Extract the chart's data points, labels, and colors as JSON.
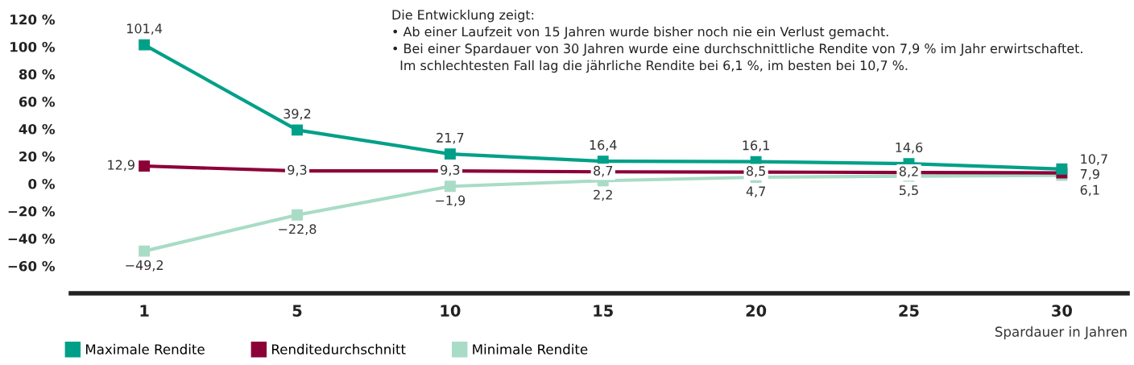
{
  "chart_data": {
    "type": "line",
    "categories": [
      "1",
      "5",
      "10",
      "15",
      "20",
      "25",
      "30"
    ],
    "xlabel": "Spardauer in Jahren",
    "ylim": [
      -80,
      120
    ],
    "yticks": [
      {
        "value": -60,
        "label": "−60 %"
      },
      {
        "value": -40,
        "label": "−40 %"
      },
      {
        "value": -20,
        "label": "−20 %"
      },
      {
        "value": 0,
        "label": "0 %"
      },
      {
        "value": 20,
        "label": "20 %"
      },
      {
        "value": 40,
        "label": "40 %"
      },
      {
        "value": 60,
        "label": "60 %"
      },
      {
        "value": 80,
        "label": "80 %"
      },
      {
        "value": 100,
        "label": "100 %"
      },
      {
        "value": 120,
        "label": "120 %"
      }
    ],
    "series": [
      {
        "name": "Maximale Rendite",
        "color": "#00a088",
        "values": [
          101.4,
          39.2,
          21.7,
          16.4,
          16.1,
          14.6,
          10.7
        ],
        "value_labels": [
          "101,4",
          "39,2",
          "21,7",
          "16,4",
          "16,1",
          "14,6",
          "10,7"
        ]
      },
      {
        "name": "Renditedurchschnitt",
        "color": "#8c0038",
        "values": [
          12.9,
          9.3,
          9.3,
          8.7,
          8.5,
          8.2,
          7.9
        ],
        "value_labels": [
          "12,9",
          "9,3",
          "9,3",
          "8,7",
          "8,5",
          "8,2",
          "7,9"
        ]
      },
      {
        "name": "Minimale Rendite",
        "color": "#a8dcc6",
        "values": [
          -49.2,
          -22.8,
          -1.9,
          2.2,
          4.7,
          5.5,
          6.1
        ],
        "value_labels": [
          "−49,2",
          "−22,8",
          "−1,9",
          "2,2",
          "4,7",
          "5,5",
          "6,1"
        ]
      }
    ],
    "annotations": [
      "Die Entwicklung zeigt:\n• Ab einer Laufzeit von 15 Jahren wurde bisher noch nie ein Verlust gemacht.\n• Bei einer Spardauer von 30 Jahren wurde eine durchschnittliche Rendite von 7,9 % im Jahr erwirtschaftet.\n  Im schlechtesten Fall lag die jährliche Rendite bei 6,1 %, im besten bei 10,7 %."
    ],
    "marker": "square",
    "line_style": "solid",
    "grid": false,
    "legend": "bottom"
  }
}
